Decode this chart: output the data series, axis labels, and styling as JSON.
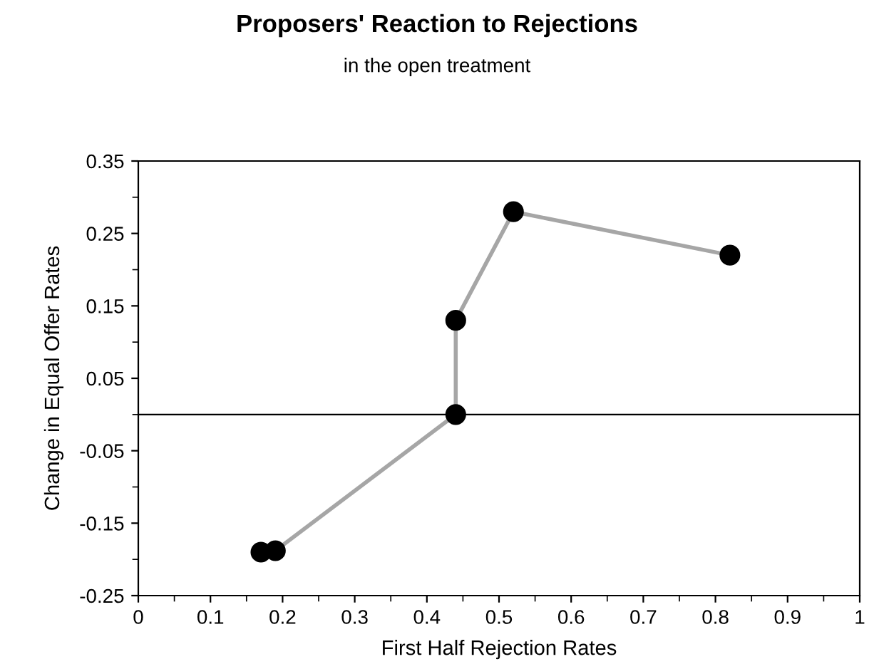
{
  "chart_data": {
    "type": "line",
    "title": "Proposers' Reaction to Rejections",
    "subtitle": "in the open treatment",
    "xlabel": "First Half Rejection Rates",
    "ylabel": "Change in Equal Offer Rates",
    "series": [
      {
        "x": [
          0.17,
          0.19,
          0.44,
          0.44,
          0.52,
          0.82
        ],
        "values": [
          -0.19,
          -0.188,
          0.0,
          0.13,
          0.28,
          0.22
        ],
        "color": "#a6a6a6",
        "colors": [
          "#000000",
          "#000000",
          "#000000",
          "#000000",
          "#000000",
          "#000000"
        ]
      }
    ],
    "marker": "circle",
    "line_style": "solid",
    "grid": false,
    "legend": false,
    "xlim": [
      0,
      1
    ],
    "xticks": [
      0,
      0.1,
      0.2,
      0.3,
      0.4,
      0.5,
      0.6,
      0.7,
      0.8,
      0.9,
      1
    ],
    "ylim": [
      -0.25,
      0.35
    ],
    "yticks": [
      {
        "value": -0.25,
        "label": "-0.25"
      },
      {
        "value": -0.15,
        "label": "-0.15"
      },
      {
        "value": -0.05,
        "label": "-0.05"
      },
      0.05,
      0.15,
      0.25,
      0.35
    ],
    "ref_lines": [
      {
        "axis": "y",
        "value": 0,
        "color": "#000000"
      }
    ]
  }
}
